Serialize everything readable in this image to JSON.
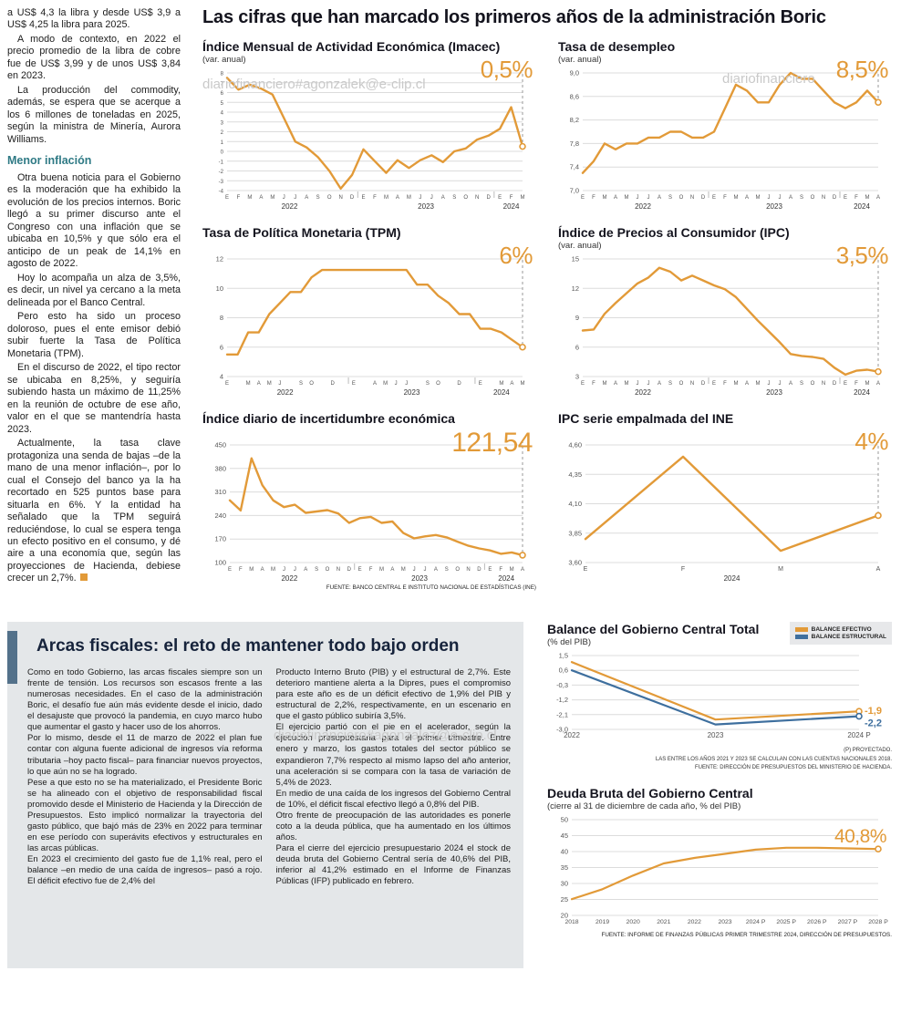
{
  "colors": {
    "accent": "#E29A38",
    "blue": "#3E6F9E",
    "teal": "#2F7A85",
    "grid": "#dcdcdc"
  },
  "watermarks": [
    {
      "text": "diariofinanciero#agonzalek@e-clip.cl"
    },
    {
      "text": "diariofinanciero"
    },
    {
      "text": "diariofinanciero#agonzalez@e-clip.cl"
    }
  ],
  "main_title": "Las cifras que han marcado los primeros años de la administración Boric",
  "left_article": {
    "paragraphs": [
      "a US$ 4,3 la libra y desde US$ 3,9 a US$ 4,25 la libra para 2025.",
      "A modo de contexto, en 2022 el precio promedio de la libra de cobre fue de US$ 3,99 y de unos US$ 3,84 en 2023.",
      "La producción del commodity, además, se espera que se acerque a los 6 millones de toneladas en 2025, según la ministra de Minería, Aurora Williams."
    ],
    "section_heading": "Menor inflación",
    "paragraphs2": [
      "Otra buena noticia para el Gobierno es la moderación que ha exhibido la evolución de los precios internos. Boric llegó a su primer discurso ante el Congreso con una inflación que se ubicaba en 10,5% y que sólo era el anticipo de un peak de 14,1% en agosto de 2022.",
      "Hoy lo acompaña un alza de 3,5%, es decir, un nivel ya cercano a la meta delineada por el Banco Central.",
      "Pero esto ha sido un proceso doloroso, pues el ente emisor debió subir fuerte la Tasa de Política Monetaria (TPM).",
      "En el discurso de 2022, el tipo rector se ubicaba en 8,25%, y seguiría subiendo hasta un máximo de 11,25% en la reunión de octubre de ese año, valor en el que se mantendría hasta 2023.",
      "Actualmente, la tasa clave protagoniza una senda de bajas –de la mano de una menor inflación–, por lo cual el Consejo del banco ya la ha recortado en 525 puntos base para situarla en 6%. Y la entidad ha señalado que la TPM seguirá reduciéndose, lo cual se espera tenga un efecto positivo en el consumo, y dé aire a una economía que, según las proyecciones de Hacienda, debiese crecer un 2,7%."
    ]
  },
  "fiscal": {
    "title": "Arcas fiscales: el reto de mantener todo bajo orden",
    "col1": [
      "Como en todo Gobierno, las arcas fiscales siempre son un frente de tensión. Los recursos son escasos frente a las numerosas necesidades. En el caso de la administración Boric, el desafío fue aún más evidente desde el inicio, dado el desajuste que provocó la pandemia, en cuyo marco hubo que aumentar el gasto y hacer uso de los ahorros.",
      "Por lo mismo, desde el 11 de marzo de 2022 el plan fue contar con alguna fuente adicional de ingresos vía reforma tributaria –hoy pacto fiscal– para financiar nuevos proyectos, lo que aún no se ha logrado.",
      "Pese a que esto no se ha materializado, el Presidente Boric se ha alineado con el objetivo de responsabilidad fiscal promovido desde el Ministerio de Hacienda y la Dirección de Presupuestos. Esto implicó normalizar la trayectoria del gasto público, que bajó más de 23% en 2022 para terminar en ese período con superávits efectivos y estructurales en las arcas públicas.",
      "En 2023 el crecimiento del gasto fue de 1,1% real, pero el balance –en medio de una caída de ingresos– pasó a rojo. El déficit efectivo fue de 2,4% del"
    ],
    "col2": [
      "Producto Interno Bruto (PIB) y el estructural de 2,7%. Este deterioro mantiene alerta a la Dipres, pues el compromiso para este año es de un déficit efectivo de 1,9% del PIB y estructural de 2,2%, respectivamente, en un escenario en que el gasto público subiría 3,5%.",
      "El ejercicio partió con el pie en el acelerador, según la ejecución presupuestaria para el primer trimestre. Entre enero y marzo, los gastos totales del sector público se expandieron 7,7% respecto al mismo lapso del año anterior, una aceleración si se compara con la tasa de variación de 5,4% de 2023.",
      "En medio de una caída de los ingresos del Gobierno Central de 10%, el déficit fiscal efectivo llegó a 0,8% del PIB.",
      "Otro frente de preocupación de las autoridades es ponerle coto a la deuda pública, que ha aumentado en los últimos años.",
      "Para el cierre del ejercicio presupuestario 2024 el stock de deuda bruta del Gobierno Central sería de 40,6% del PIB, inferior al 41,2% estimado en el Informe de Finanzas Públicas (IFP) publicado en febrero."
    ]
  },
  "chart_data": [
    {
      "id": "imacec",
      "type": "line",
      "title": "Índice Mensual de Actividad Económica (Imacec)",
      "subtitle": "(var. anual)",
      "highlight": "0,5%",
      "ylim": [
        -4,
        8
      ],
      "yticks": [
        8,
        7,
        6,
        5,
        4,
        3,
        2,
        1,
        0,
        -1,
        -2,
        -3,
        -4
      ],
      "ytick_labels": [
        "8",
        "7",
        "6",
        "5",
        "4",
        "3",
        "2",
        "1",
        "0",
        "-1",
        "-2",
        "-3",
        "-4"
      ],
      "ytick_font": 6,
      "x_labels": [
        "E",
        "F",
        "M",
        "A",
        "M",
        "J",
        "J",
        "A",
        "S",
        "O",
        "N",
        "D",
        "E",
        "F",
        "M",
        "A",
        "M",
        "J",
        "J",
        "A",
        "S",
        "O",
        "N",
        "D",
        "E",
        "F",
        "M"
      ],
      "year_groups": [
        {
          "label": "2022",
          "count": 12
        },
        {
          "label": "2023",
          "count": 12
        },
        {
          "label": "2024",
          "count": 3
        }
      ],
      "dashed_end": true,
      "series": [
        {
          "name": "Imacec",
          "color": "accent",
          "values": [
            7.5,
            6.3,
            6.8,
            6.4,
            5.8,
            3.4,
            1.0,
            0.4,
            -0.6,
            -2.0,
            -3.8,
            -2.4,
            0.2,
            -1.0,
            -2.2,
            -0.9,
            -1.7,
            -0.9,
            -0.4,
            -1.1,
            0.0,
            0.3,
            1.2,
            1.6,
            2.3,
            4.5,
            0.5
          ]
        }
      ]
    },
    {
      "id": "desempleo",
      "type": "line",
      "title": "Tasa de desempleo",
      "subtitle": "(var. anual)",
      "highlight": "8,5%",
      "ylim": [
        7.0,
        9.0
      ],
      "yticks": [
        9.0,
        8.6,
        8.2,
        7.8,
        7.4,
        7.0
      ],
      "ytick_labels": [
        "9,0",
        "8,6",
        "8,2",
        "7,8",
        "7,4",
        "7,0"
      ],
      "x_labels": [
        "E",
        "F",
        "M",
        "A",
        "M",
        "J",
        "J",
        "A",
        "S",
        "O",
        "N",
        "D",
        "E",
        "F",
        "M",
        "A",
        "M",
        "J",
        "J",
        "A",
        "S",
        "O",
        "N",
        "D",
        "E",
        "F",
        "M",
        "A"
      ],
      "year_groups": [
        {
          "label": "2022",
          "count": 12
        },
        {
          "label": "2023",
          "count": 12
        },
        {
          "label": "2024",
          "count": 4
        }
      ],
      "dashed_end": true,
      "series": [
        {
          "name": "Tasa de desempleo",
          "color": "accent",
          "values": [
            7.3,
            7.5,
            7.8,
            7.7,
            7.8,
            7.8,
            7.9,
            7.9,
            8.0,
            8.0,
            7.9,
            7.9,
            8.0,
            8.4,
            8.8,
            8.7,
            8.5,
            8.5,
            8.8,
            9.0,
            8.9,
            8.9,
            8.7,
            8.5,
            8.4,
            8.5,
            8.7,
            8.5
          ]
        }
      ]
    },
    {
      "id": "tpm",
      "type": "line",
      "title": "Tasa de Política Monetaria (TPM)",
      "subtitle": "",
      "highlight": "6%",
      "ylim": [
        4,
        12
      ],
      "yticks": [
        12,
        10,
        8,
        6,
        4
      ],
      "ytick_labels": [
        "12",
        "10",
        "8",
        "6",
        "4"
      ],
      "x_labels": [
        "E",
        "",
        "M",
        "A",
        "M",
        "J",
        "",
        "S",
        "O",
        "",
        "D",
        "",
        "E",
        "",
        "A",
        "M",
        "J",
        "J",
        "",
        "S",
        "O",
        "",
        "D",
        "",
        "E",
        "",
        "M",
        "A",
        "M"
      ],
      "year_groups": [
        {
          "label": "2022",
          "count": 12
        },
        {
          "label": "2023",
          "count": 12
        },
        {
          "label": "2024",
          "count": 5
        }
      ],
      "dashed_end": true,
      "series": [
        {
          "name": "TPM",
          "color": "accent",
          "values": [
            5.5,
            5.5,
            7.0,
            7.0,
            8.25,
            9.0,
            9.75,
            9.75,
            10.75,
            11.25,
            11.25,
            11.25,
            11.25,
            11.25,
            11.25,
            11.25,
            11.25,
            11.25,
            10.25,
            10.25,
            9.5,
            9.0,
            8.25,
            8.25,
            7.25,
            7.25,
            7.0,
            6.5,
            6.0
          ]
        }
      ]
    },
    {
      "id": "ipc",
      "type": "line",
      "title": "Índice de Precios al Consumidor (IPC)",
      "subtitle": "(var. anual)",
      "highlight": "3,5%",
      "ylim": [
        3,
        15
      ],
      "yticks": [
        15,
        12,
        9,
        6,
        3
      ],
      "ytick_labels": [
        "15",
        "12",
        "9",
        "6",
        "3"
      ],
      "x_labels": [
        "E",
        "F",
        "M",
        "A",
        "M",
        "J",
        "J",
        "A",
        "S",
        "O",
        "N",
        "D",
        "E",
        "F",
        "M",
        "A",
        "M",
        "J",
        "J",
        "A",
        "S",
        "O",
        "N",
        "D",
        "E",
        "F",
        "M",
        "A"
      ],
      "year_groups": [
        {
          "label": "2022",
          "count": 12
        },
        {
          "label": "2023",
          "count": 12
        },
        {
          "label": "2024",
          "count": 4
        }
      ],
      "dashed_end": true,
      "series": [
        {
          "name": "IPC",
          "color": "accent",
          "values": [
            7.7,
            7.8,
            9.4,
            10.5,
            11.5,
            12.5,
            13.1,
            14.1,
            13.7,
            12.8,
            13.3,
            12.8,
            12.3,
            11.9,
            11.1,
            9.9,
            8.7,
            7.6,
            6.5,
            5.3,
            5.1,
            5.0,
            4.8,
            3.9,
            3.2,
            3.6,
            3.7,
            3.5
          ]
        }
      ]
    },
    {
      "id": "incertidumbre",
      "type": "line",
      "title": "Índice diario de incertidumbre económica",
      "subtitle": "",
      "highlight": "121,54",
      "source": "FUENTE: BANCO CENTRAL E INSTITUTO NACIONAL DE ESTADÍSTICAS (INE)",
      "ylim": [
        100,
        450
      ],
      "yticks": [
        450,
        380,
        310,
        240,
        170,
        100
      ],
      "ytick_labels": [
        "450",
        "380",
        "310",
        "240",
        "170",
        "100"
      ],
      "ml": 30,
      "x_labels": [
        "E",
        "F",
        "M",
        "A",
        "M",
        "J",
        "J",
        "A",
        "S",
        "O",
        "N",
        "D",
        "E",
        "F",
        "M",
        "A",
        "M",
        "J",
        "J",
        "A",
        "S",
        "O",
        "N",
        "D",
        "E",
        "F",
        "M",
        "A"
      ],
      "year_groups": [
        {
          "label": "2022",
          "count": 12
        },
        {
          "label": "2023",
          "count": 12
        },
        {
          "label": "2024",
          "count": 4
        }
      ],
      "dashed_end": true,
      "series": [
        {
          "name": "Incertidumbre económica",
          "color": "accent",
          "values": [
            285,
            255,
            410,
            330,
            285,
            265,
            272,
            248,
            252,
            256,
            246,
            218,
            232,
            236,
            218,
            222,
            188,
            172,
            178,
            182,
            175,
            162,
            150,
            142,
            136,
            126,
            130,
            122
          ]
        }
      ]
    },
    {
      "id": "ipc_ine",
      "type": "line",
      "title": "IPC serie empalmada del INE",
      "subtitle": "",
      "highlight": "4%",
      "ylim": [
        3.6,
        4.6
      ],
      "yticks": [
        4.6,
        4.35,
        4.1,
        3.85,
        3.6
      ],
      "ytick_labels": [
        "4,60",
        "4,35",
        "4,10",
        "3,85",
        "3,60"
      ],
      "x_font": 7,
      "ml": 30,
      "x_labels": [
        "E",
        "F",
        "M",
        "A"
      ],
      "year_groups": [
        {
          "label": "2024",
          "count": 4
        }
      ],
      "dashed_end": true,
      "series": [
        {
          "name": "IPC empalmado",
          "color": "accent",
          "values": [
            3.8,
            4.5,
            3.7,
            4.0
          ]
        }
      ]
    },
    {
      "id": "balance",
      "type": "line",
      "title": "Balance del Gobierno Central Total",
      "subtitle": "(% del PIB)",
      "ylim": [
        -3.0,
        1.5
      ],
      "yticks": [
        1.5,
        0.6,
        -0.3,
        -1.2,
        -2.1,
        -3.0
      ],
      "ytick_labels": [
        "1,5",
        "0,6",
        "-0,3",
        "-1,2",
        "-2,1",
        "-3,0"
      ],
      "x_labels": [
        "2022",
        "2023",
        "2024 P"
      ],
      "x_font": 8,
      "mr": 36,
      "lw": 2.2,
      "dashed_end": false,
      "series": [
        {
          "name": "BALANCE EFECTIVO",
          "color": "accent",
          "values": [
            1.1,
            -2.4,
            -1.9
          ],
          "end_label": "-1,9",
          "label_dy": 0
        },
        {
          "name": "BALANCE ESTRUCTURAL",
          "color": "blue",
          "values": [
            0.6,
            -2.7,
            -2.2
          ],
          "end_label": "-2,2",
          "label_dy": 8
        }
      ],
      "notes": [
        "(P) PROYECTADO.",
        "LAS ENTRE LOS AÑOS 2021 Y 2023 SE CALCULAN CON LAS CUENTAS NACIONALES 2018.",
        "FUENTE: DIRECCIÓN DE PRESUPUESTOS DEL MINISTERIO DE HACIENDA."
      ]
    },
    {
      "id": "deuda",
      "type": "line",
      "title": "Deuda Bruta del Gobierno Central",
      "subtitle": "(cierre al 31 de diciembre de cada año, % del PIB)",
      "highlight": "40,8%",
      "source": "FUENTE: INFORME DE FINANZAS PÚBLICAS PRIMER TRIMESTRE 2024, DIRECCIÓN DE PRESUPUESTOS.",
      "ylim": [
        20,
        50
      ],
      "yticks": [
        50,
        45,
        40,
        35,
        30,
        25,
        20
      ],
      "ytick_labels": [
        "50",
        "45",
        "40",
        "35",
        "30",
        "25",
        "20"
      ],
      "x_font": 6.8,
      "lw": 2.2,
      "x_labels": [
        "2018",
        "2019",
        "2020",
        "2021",
        "2022",
        "2023",
        "2024 P",
        "2025 P",
        "2026 P",
        "2027 P",
        "2028 P"
      ],
      "dashed_end": false,
      "series": [
        {
          "name": "Deuda bruta",
          "color": "accent",
          "values": [
            25.1,
            28.2,
            32.5,
            36.3,
            38.0,
            39.3,
            40.6,
            41.2,
            41.2,
            41.0,
            40.8
          ]
        }
      ]
    }
  ]
}
